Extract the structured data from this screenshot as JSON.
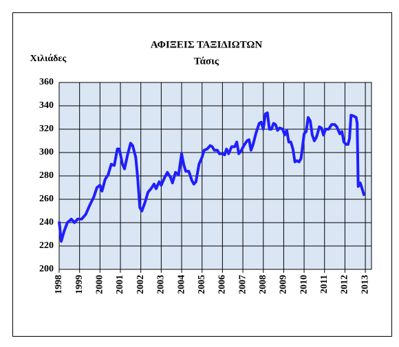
{
  "chart_data": {
    "type": "line",
    "title": "ΑΦΙΞΕΙΣ ΤΑΞΙΔΙΩΤΩΝ",
    "subtitle": "Τάσις",
    "y_label": "Χιλιάδες",
    "color": "#1f1fff",
    "grid": true,
    "xlim": [
      1998,
      2013.3
    ],
    "xticks": [
      1998,
      1999,
      2000,
      2001,
      2002,
      2003,
      2004,
      2005,
      2006,
      2007,
      2008,
      2009,
      2010,
      2011,
      2012,
      2013
    ],
    "ylim": [
      200,
      360
    ],
    "yticks": [
      200,
      220,
      240,
      260,
      280,
      300,
      320,
      340,
      360
    ],
    "x": [
      1998.0,
      1998.1,
      1998.25,
      1998.4,
      1998.6,
      1998.75,
      1998.9,
      1999.1,
      1999.3,
      1999.5,
      1999.7,
      1999.85,
      2000.0,
      2000.1,
      2000.25,
      2000.4,
      2000.55,
      2000.7,
      2000.85,
      2000.95,
      2001.1,
      2001.2,
      2001.35,
      2001.5,
      2001.6,
      2001.75,
      2001.85,
      2001.95,
      2002.05,
      2002.2,
      2002.35,
      2002.5,
      2002.65,
      2002.75,
      2002.9,
      2003.0,
      2003.15,
      2003.3,
      2003.45,
      2003.55,
      2003.7,
      2003.85,
      2004.0,
      2004.1,
      2004.2,
      2004.35,
      2004.5,
      2004.6,
      2004.7,
      2004.85,
      2005.0,
      2005.1,
      2005.25,
      2005.4,
      2005.5,
      2005.6,
      2005.75,
      2005.85,
      2006.0,
      2006.1,
      2006.2,
      2006.3,
      2006.45,
      2006.6,
      2006.7,
      2006.8,
      2006.9,
      2007.05,
      2007.2,
      2007.3,
      2007.4,
      2007.5,
      2007.65,
      2007.8,
      2007.9,
      2008.0,
      2008.1,
      2008.2,
      2008.3,
      2008.4,
      2008.5,
      2008.6,
      2008.7,
      2008.8,
      2008.95,
      2009.05,
      2009.15,
      2009.25,
      2009.35,
      2009.45,
      2009.55,
      2009.65,
      2009.75,
      2009.85,
      2010.0,
      2010.1,
      2010.2,
      2010.3,
      2010.4,
      2010.5,
      2010.6,
      2010.75,
      2010.85,
      2010.95,
      2011.05,
      2011.2,
      2011.35,
      2011.5,
      2011.6,
      2011.75,
      2011.85,
      2011.95,
      2012.05,
      2012.15,
      2012.22,
      2012.3,
      2012.45,
      2012.55,
      2012.6,
      2012.65,
      2012.75,
      2012.95
    ],
    "values": [
      241,
      224,
      233,
      240,
      243,
      240,
      243,
      243,
      247,
      255,
      262,
      270,
      272,
      267,
      277,
      281,
      290,
      289,
      303,
      303,
      290,
      286,
      298,
      308,
      306,
      296,
      278,
      253,
      250,
      257,
      266,
      269,
      273,
      269,
      275,
      272,
      278,
      283,
      279,
      274,
      283,
      281,
      299,
      290,
      284,
      284,
      276,
      273,
      275,
      290,
      296,
      302,
      303,
      306,
      305,
      302,
      302,
      299,
      299,
      298,
      303,
      299,
      305,
      305,
      309,
      299,
      301,
      306,
      310,
      311,
      302,
      307,
      317,
      325,
      326,
      320,
      333,
      334,
      320,
      320,
      325,
      324,
      319,
      321,
      320,
      315,
      319,
      309,
      309,
      303,
      292,
      293,
      292,
      295,
      316,
      318,
      330,
      327,
      315,
      310,
      313,
      322,
      321,
      315,
      320,
      320,
      324,
      324,
      322,
      316,
      318,
      309,
      307,
      307,
      312,
      332,
      331,
      330,
      325,
      271,
      274,
      263
    ]
  }
}
